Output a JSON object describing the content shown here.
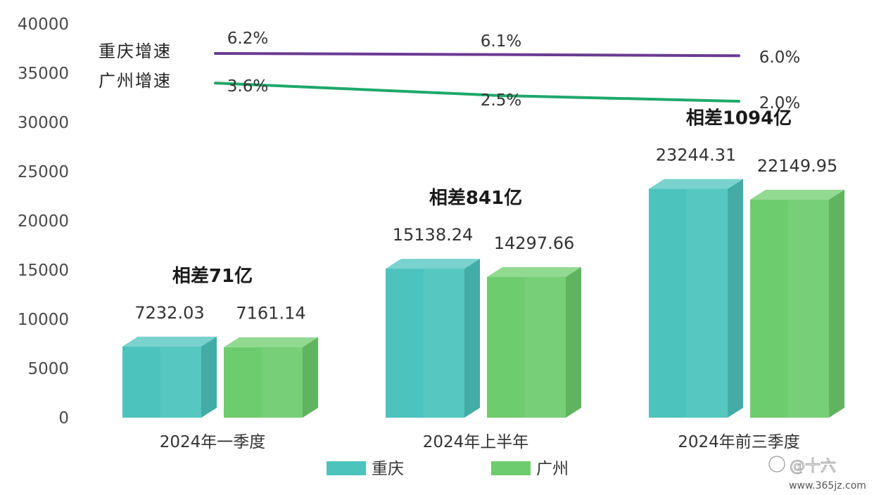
{
  "chart_data": {
    "type": "bar",
    "categories": [
      "2024年一季度",
      "2024年上半年",
      "2024年前三季度"
    ],
    "series": [
      {
        "name": "重庆",
        "values": [
          7232.03,
          15138.24,
          23244.31
        ],
        "color": "#4cc3bd"
      },
      {
        "name": "广州",
        "values": [
          7161.14,
          14297.66,
          22149.95
        ],
        "color": "#6dcc6d"
      }
    ],
    "value_labels": [
      [
        "7232.03",
        "15138.24",
        "23244.31"
      ],
      [
        "7161.14",
        "14297.66",
        "22149.95"
      ]
    ],
    "difference_labels": [
      "相差71亿",
      "相差841亿",
      "相差1094亿"
    ],
    "y_ticks": [
      "0",
      "5000",
      "10000",
      "15000",
      "20000",
      "25000",
      "30000",
      "35000",
      "40000"
    ],
    "ylim": [
      0,
      40000
    ],
    "growth_lines": [
      {
        "name": "重庆增速",
        "values": [
          6.2,
          6.1,
          6.0
        ],
        "labels": [
          "6.2%",
          "6.1%",
          "6.0%"
        ],
        "color": "#6a3b92"
      },
      {
        "name": "广州增速",
        "values": [
          3.6,
          2.5,
          2.0
        ],
        "labels": [
          "3.6%",
          "2.5%",
          "2.0%"
        ],
        "color": "#1fa86b"
      }
    ],
    "legend": {
      "position": "bottom",
      "items": [
        "重庆",
        "广州"
      ]
    },
    "grid": false
  },
  "watermark": {
    "text": "@十六",
    "url": "www.365jz.com"
  }
}
